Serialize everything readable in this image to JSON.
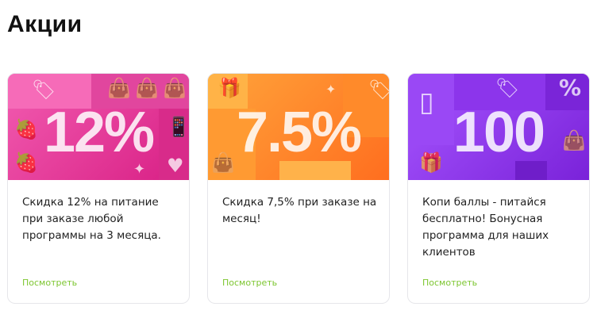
{
  "page_title": "Акции",
  "promos": [
    {
      "banner_text": "12%",
      "description": "Скидка 12% на питание при заказе любой программы на 3 месяца.",
      "link": "Посмотреть",
      "color": "#e8399a"
    },
    {
      "banner_text": "7.5%",
      "description": "Скидка 7,5% при заказе на месяц!",
      "link": "Посмотреть",
      "color": "#ff8a2a"
    },
    {
      "banner_text": "100",
      "description": "Копи баллы - питайся бесплатно! Бонусная программа для наших клиентов",
      "link": "Посмотреть",
      "color": "#9b3cf0"
    }
  ],
  "link_color": "#7dc630"
}
